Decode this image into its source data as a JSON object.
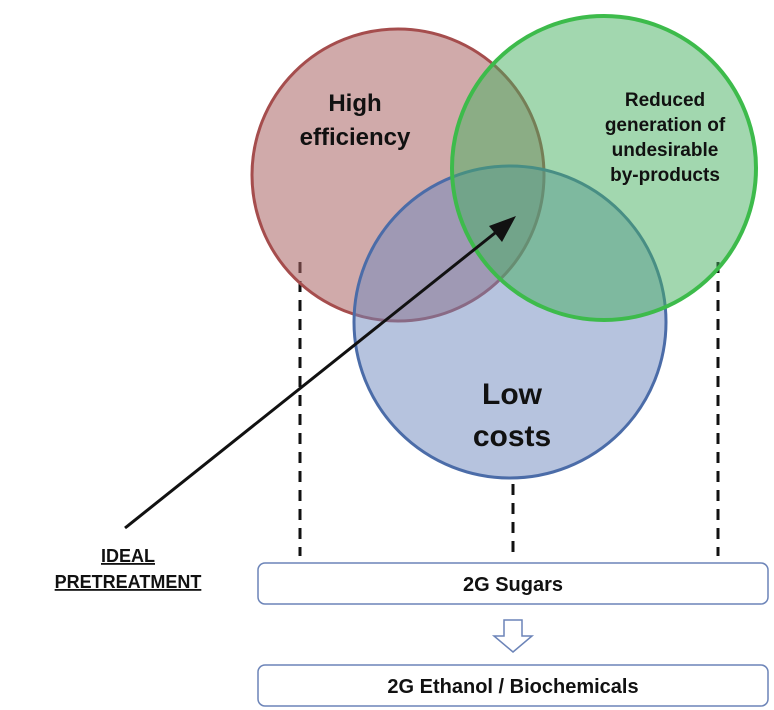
{
  "circles": [
    {
      "lines": [
        "High",
        "efficiency"
      ]
    },
    {
      "lines": [
        "Low",
        "costs"
      ]
    },
    {
      "lines": [
        "Reduced",
        "generation of",
        "undesirable",
        "by-products"
      ]
    }
  ],
  "pointer_label": {
    "lines": [
      "IDEAL",
      "PRETREATMENT"
    ]
  },
  "boxes": [
    {
      "label": "2G Sugars"
    },
    {
      "label": "2G Ethanol / Biochemicals"
    }
  ]
}
